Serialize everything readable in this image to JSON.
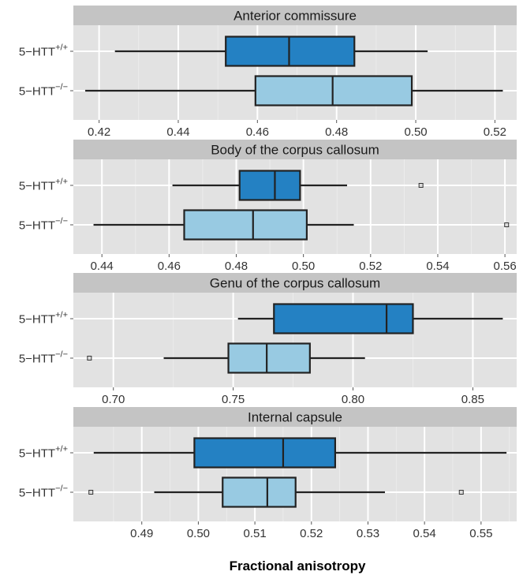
{
  "figure": {
    "xlabel": "Fractional anisotropy",
    "colors": {
      "wildtype_fill": "#2481c3",
      "knockout_fill": "#98cae2",
      "box_stroke": "#222222",
      "panel_bg": "#e2e2e2",
      "strip_bg": "#c4c4c4",
      "grid_major": "#ffffff",
      "grid_minor": "#eeeeee"
    }
  },
  "chart_data": [
    {
      "type": "boxplot",
      "title": "Anterior commissure",
      "xlim": [
        0.4135,
        0.5255
      ],
      "ticks": [
        0.42,
        0.44,
        0.46,
        0.48,
        0.5,
        0.52
      ],
      "tick_labels": [
        "0.42",
        "0.44",
        "0.46",
        "0.48",
        "0.50",
        "0.52"
      ],
      "series": [
        {
          "label": "5−HTT",
          "superscript": "+/+",
          "genotype": "wildtype",
          "whisker_low": 0.424,
          "q1": 0.452,
          "median": 0.468,
          "q3": 0.4845,
          "whisker_high": 0.503,
          "outliers": []
        },
        {
          "label": "5−HTT",
          "superscript": "−/−",
          "genotype": "knockout",
          "whisker_low": 0.4165,
          "q1": 0.4595,
          "median": 0.479,
          "q3": 0.499,
          "whisker_high": 0.522,
          "outliers": []
        }
      ]
    },
    {
      "type": "boxplot",
      "title": "Body of the corpus callosum",
      "xlim": [
        0.4315,
        0.5635
      ],
      "ticks": [
        0.44,
        0.46,
        0.48,
        0.5,
        0.52,
        0.54,
        0.56
      ],
      "tick_labels": [
        "0.44",
        "0.46",
        "0.48",
        "0.50",
        "0.52",
        "0.54",
        "0.56"
      ],
      "series": [
        {
          "label": "5−HTT",
          "superscript": "+/+",
          "genotype": "wildtype",
          "whisker_low": 0.461,
          "q1": 0.481,
          "median": 0.4915,
          "q3": 0.499,
          "whisker_high": 0.513,
          "outliers": [
            0.535
          ]
        },
        {
          "label": "5−HTT",
          "superscript": "−/−",
          "genotype": "knockout",
          "whisker_low": 0.4375,
          "q1": 0.4645,
          "median": 0.485,
          "q3": 0.501,
          "whisker_high": 0.515,
          "outliers": [
            0.5605
          ]
        }
      ]
    },
    {
      "type": "boxplot",
      "title": "Genu of the corpus callosum",
      "xlim": [
        0.6833,
        0.8683
      ],
      "ticks": [
        0.7,
        0.75,
        0.8,
        0.85
      ],
      "tick_labels": [
        "0.70",
        "0.75",
        "0.80",
        "0.85"
      ],
      "series": [
        {
          "label": "5−HTT",
          "superscript": "+/+",
          "genotype": "wildtype",
          "whisker_low": 0.752,
          "q1": 0.767,
          "median": 0.814,
          "q3": 0.825,
          "whisker_high": 0.8625,
          "outliers": []
        },
        {
          "label": "5−HTT",
          "superscript": "−/−",
          "genotype": "knockout",
          "whisker_low": 0.721,
          "q1": 0.748,
          "median": 0.764,
          "q3": 0.782,
          "whisker_high": 0.805,
          "outliers": [
            0.69
          ]
        }
      ]
    },
    {
      "type": "boxplot",
      "title": "Internal capsule",
      "xlim": [
        0.4779,
        0.5563
      ],
      "ticks": [
        0.49,
        0.5,
        0.51,
        0.52,
        0.53,
        0.54,
        0.55
      ],
      "tick_labels": [
        "0.49",
        "0.50",
        "0.51",
        "0.52",
        "0.53",
        "0.54",
        "0.55"
      ],
      "series": [
        {
          "label": "5−HTT",
          "superscript": "+/+",
          "genotype": "wildtype",
          "whisker_low": 0.4815,
          "q1": 0.4993,
          "median": 0.515,
          "q3": 0.5242,
          "whisker_high": 0.5545,
          "outliers": []
        },
        {
          "label": "5−HTT",
          "superscript": "−/−",
          "genotype": "knockout",
          "whisker_low": 0.4922,
          "q1": 0.5043,
          "median": 0.5122,
          "q3": 0.5172,
          "whisker_high": 0.533,
          "outliers": [
            0.481,
            0.5465
          ]
        }
      ]
    }
  ]
}
